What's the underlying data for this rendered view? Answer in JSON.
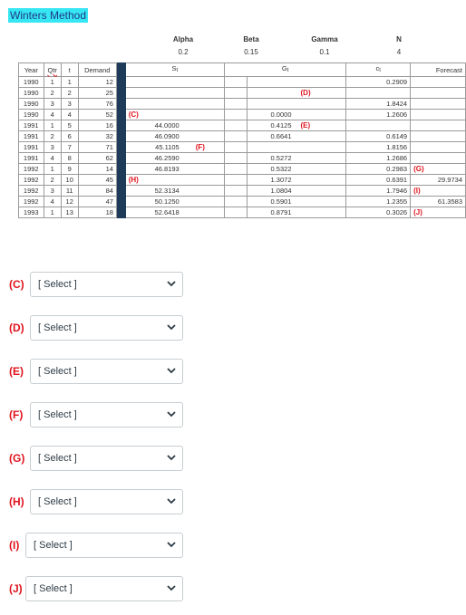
{
  "title": "Winters Method",
  "params": {
    "alpha": {
      "label": "Alpha",
      "value": "0.2"
    },
    "beta": {
      "label": "Beta",
      "value": "0.15"
    },
    "gamma": {
      "label": "Gamma",
      "value": "0.1"
    },
    "n": {
      "label": "N",
      "value": "4"
    }
  },
  "columns": {
    "year": "Year",
    "qtr": "Qtr",
    "t": "t",
    "demand": "Demand",
    "s": "S",
    "s_sub": "t",
    "g": "G",
    "g_sub": "t",
    "c": "c",
    "c_sub": "t",
    "forecast": "Forecast"
  },
  "rows": [
    {
      "year": "1990",
      "qtr": "1",
      "t": "1",
      "demand": "12",
      "s": "",
      "s_tag": "",
      "g": "",
      "c": "0.2909",
      "c_tag": "",
      "f": "",
      "f_tag": ""
    },
    {
      "year": "1990",
      "qtr": "2",
      "t": "2",
      "demand": "25",
      "s": "",
      "s_tag": "",
      "g": "",
      "c": "",
      "c_tag": "",
      "f": "",
      "f_tag": ""
    },
    {
      "year": "1990",
      "qtr": "3",
      "t": "3",
      "demand": "76",
      "s": "",
      "s_tag": "",
      "g": "",
      "c": "1.8424",
      "c_tag": "",
      "f": "",
      "f_tag": ""
    },
    {
      "year": "1990",
      "qtr": "4",
      "t": "4",
      "demand": "52",
      "s": "",
      "s_tag": "",
      "g": "0.0000",
      "c": "1.2606",
      "c_tag": "",
      "f": "",
      "f_tag": ""
    },
    {
      "year": "1991",
      "qtr": "1",
      "t": "5",
      "demand": "16",
      "s": "44.0000",
      "s_tag": "",
      "g": "0.4125",
      "c": "",
      "c_tag": "",
      "f": "",
      "f_tag": ""
    },
    {
      "year": "1991",
      "qtr": "2",
      "t": "6",
      "demand": "32",
      "s": "46.0900",
      "s_tag": "",
      "g": "0.6641",
      "c": "0.6149",
      "c_tag": "",
      "f": "",
      "f_tag": ""
    },
    {
      "year": "1991",
      "qtr": "3",
      "t": "7",
      "demand": "71",
      "s": "45.1105",
      "s_tag": "(F)",
      "g": "",
      "c": "1.8156",
      "c_tag": "",
      "f": "",
      "f_tag": ""
    },
    {
      "year": "1991",
      "qtr": "4",
      "t": "8",
      "demand": "62",
      "s": "46.2590",
      "s_tag": "",
      "g": "0.5272",
      "c": "1.2686",
      "c_tag": "",
      "f": "",
      "f_tag": ""
    },
    {
      "year": "1992",
      "qtr": "1",
      "t": "9",
      "demand": "14",
      "s": "46.8193",
      "s_tag": "",
      "g": "0.5322",
      "c": "0.2983",
      "c_tag": "(G)",
      "f": "",
      "f_tag": ""
    },
    {
      "year": "1992",
      "qtr": "2",
      "t": "10",
      "demand": "45",
      "s": "",
      "s_tag": "",
      "g": "1.3072",
      "c": "0.6391",
      "c_tag": "",
      "f": "29.9734",
      "f_tag": ""
    },
    {
      "year": "1992",
      "qtr": "3",
      "t": "11",
      "demand": "84",
      "s": "52.3134",
      "s_tag": "",
      "g": "1.0804",
      "c": "1.7946",
      "c_tag": "(I)",
      "f": "",
      "f_tag": ""
    },
    {
      "year": "1992",
      "qtr": "4",
      "t": "12",
      "demand": "47",
      "s": "50.1250",
      "s_tag": "",
      "g": "0.5901",
      "c": "1.2355",
      "c_tag": "",
      "f": "61.3583",
      "f_tag": ""
    },
    {
      "year": "1993",
      "qtr": "1",
      "t": "13",
      "demand": "18",
      "s": "52.6418",
      "s_tag": "",
      "g": "0.8791",
      "c": "0.3026",
      "c_tag": "(J)",
      "f": "",
      "f_tag": ""
    }
  ],
  "inline_tags": {
    "c_row4": "(C)",
    "d_row2": "(D)",
    "e_row5": "(E)",
    "h_row10": "(H)"
  },
  "questions": [
    {
      "label": "(C)",
      "placeholder": "[ Select ]"
    },
    {
      "label": "(D)",
      "placeholder": "[ Select ]"
    },
    {
      "label": "(E)",
      "placeholder": "[ Select ]"
    },
    {
      "label": "(F)",
      "placeholder": "[ Select ]"
    },
    {
      "label": "(G)",
      "placeholder": "[ Select ]"
    },
    {
      "label": "(H)",
      "placeholder": "[ Select ]"
    },
    {
      "label": "(I)",
      "placeholder": "[ Select ]"
    },
    {
      "label": "(J)",
      "placeholder": "[ Select ]"
    }
  ]
}
